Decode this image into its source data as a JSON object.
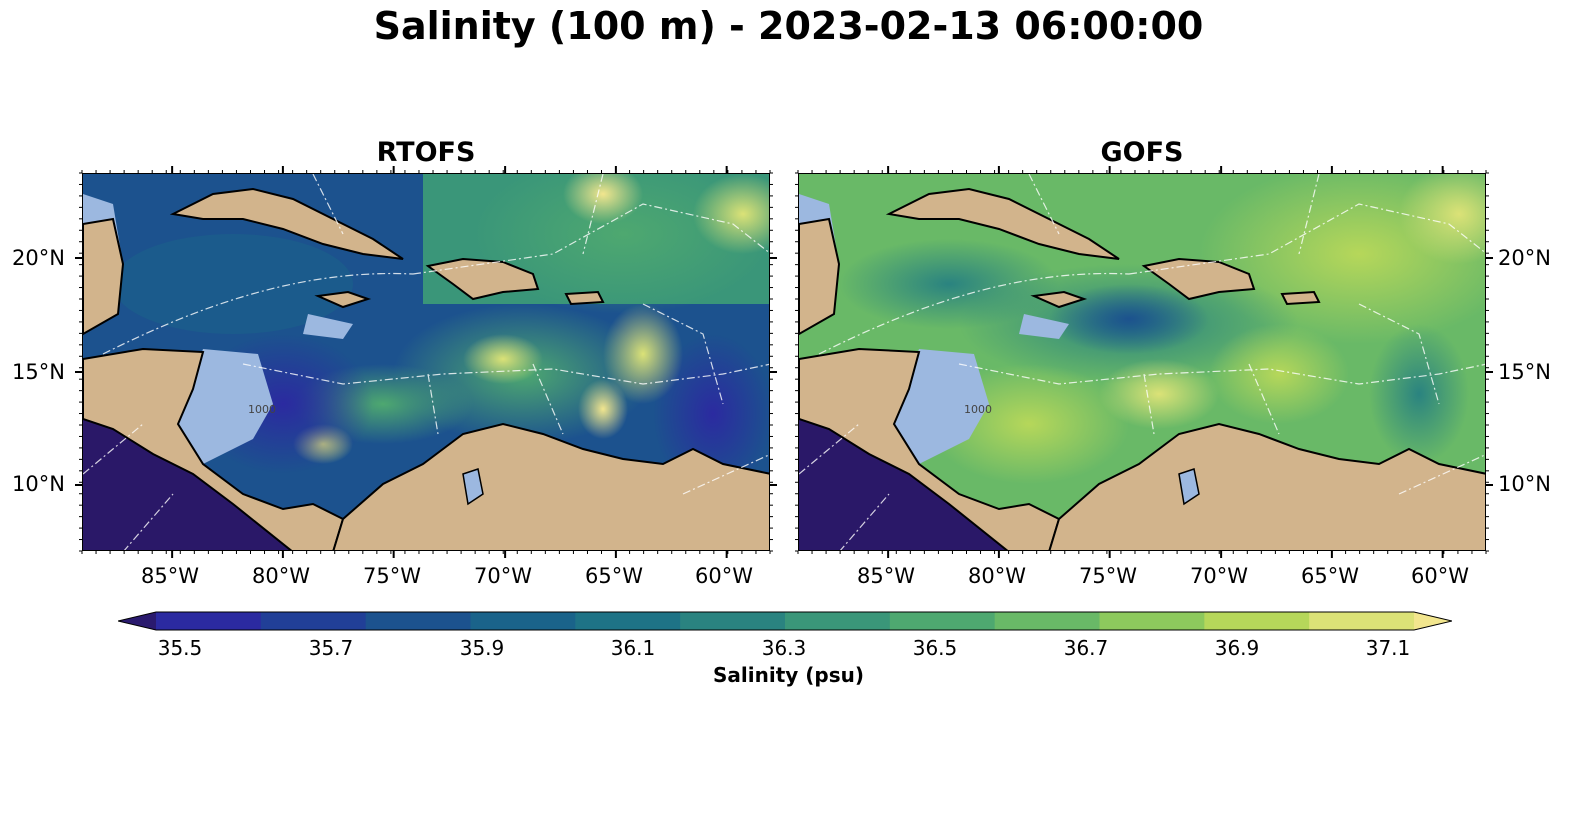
{
  "title": "Salinity (100 m) - 2023-02-13 06:00:00",
  "panels": [
    {
      "title": "RTOFS"
    },
    {
      "title": "GOFS"
    }
  ],
  "x_ticks": [
    "85°W",
    "80°W",
    "75°W",
    "70°W",
    "65°W",
    "60°W"
  ],
  "y_ticks": [
    "20°N",
    "15°N",
    "10°N"
  ],
  "contour_label": "1000",
  "colorbar": {
    "label": "Salinity (psu)",
    "ticks": [
      "35.5",
      "35.7",
      "35.9",
      "36.1",
      "36.3",
      "36.5",
      "36.7",
      "36.9",
      "37.1"
    ],
    "colors": [
      "#2a1a6e",
      "#2b2aa0",
      "#213f97",
      "#1c528e",
      "#1a638a",
      "#1e7386",
      "#2a8380",
      "#3a9679",
      "#4ea870",
      "#69b967",
      "#8dc95d",
      "#b6d75a",
      "#dbe277",
      "#f2e68e"
    ]
  },
  "colors": {
    "land": "#d2b48c",
    "shelf": "#9cb8e0",
    "pacific": "#2a1868"
  }
}
